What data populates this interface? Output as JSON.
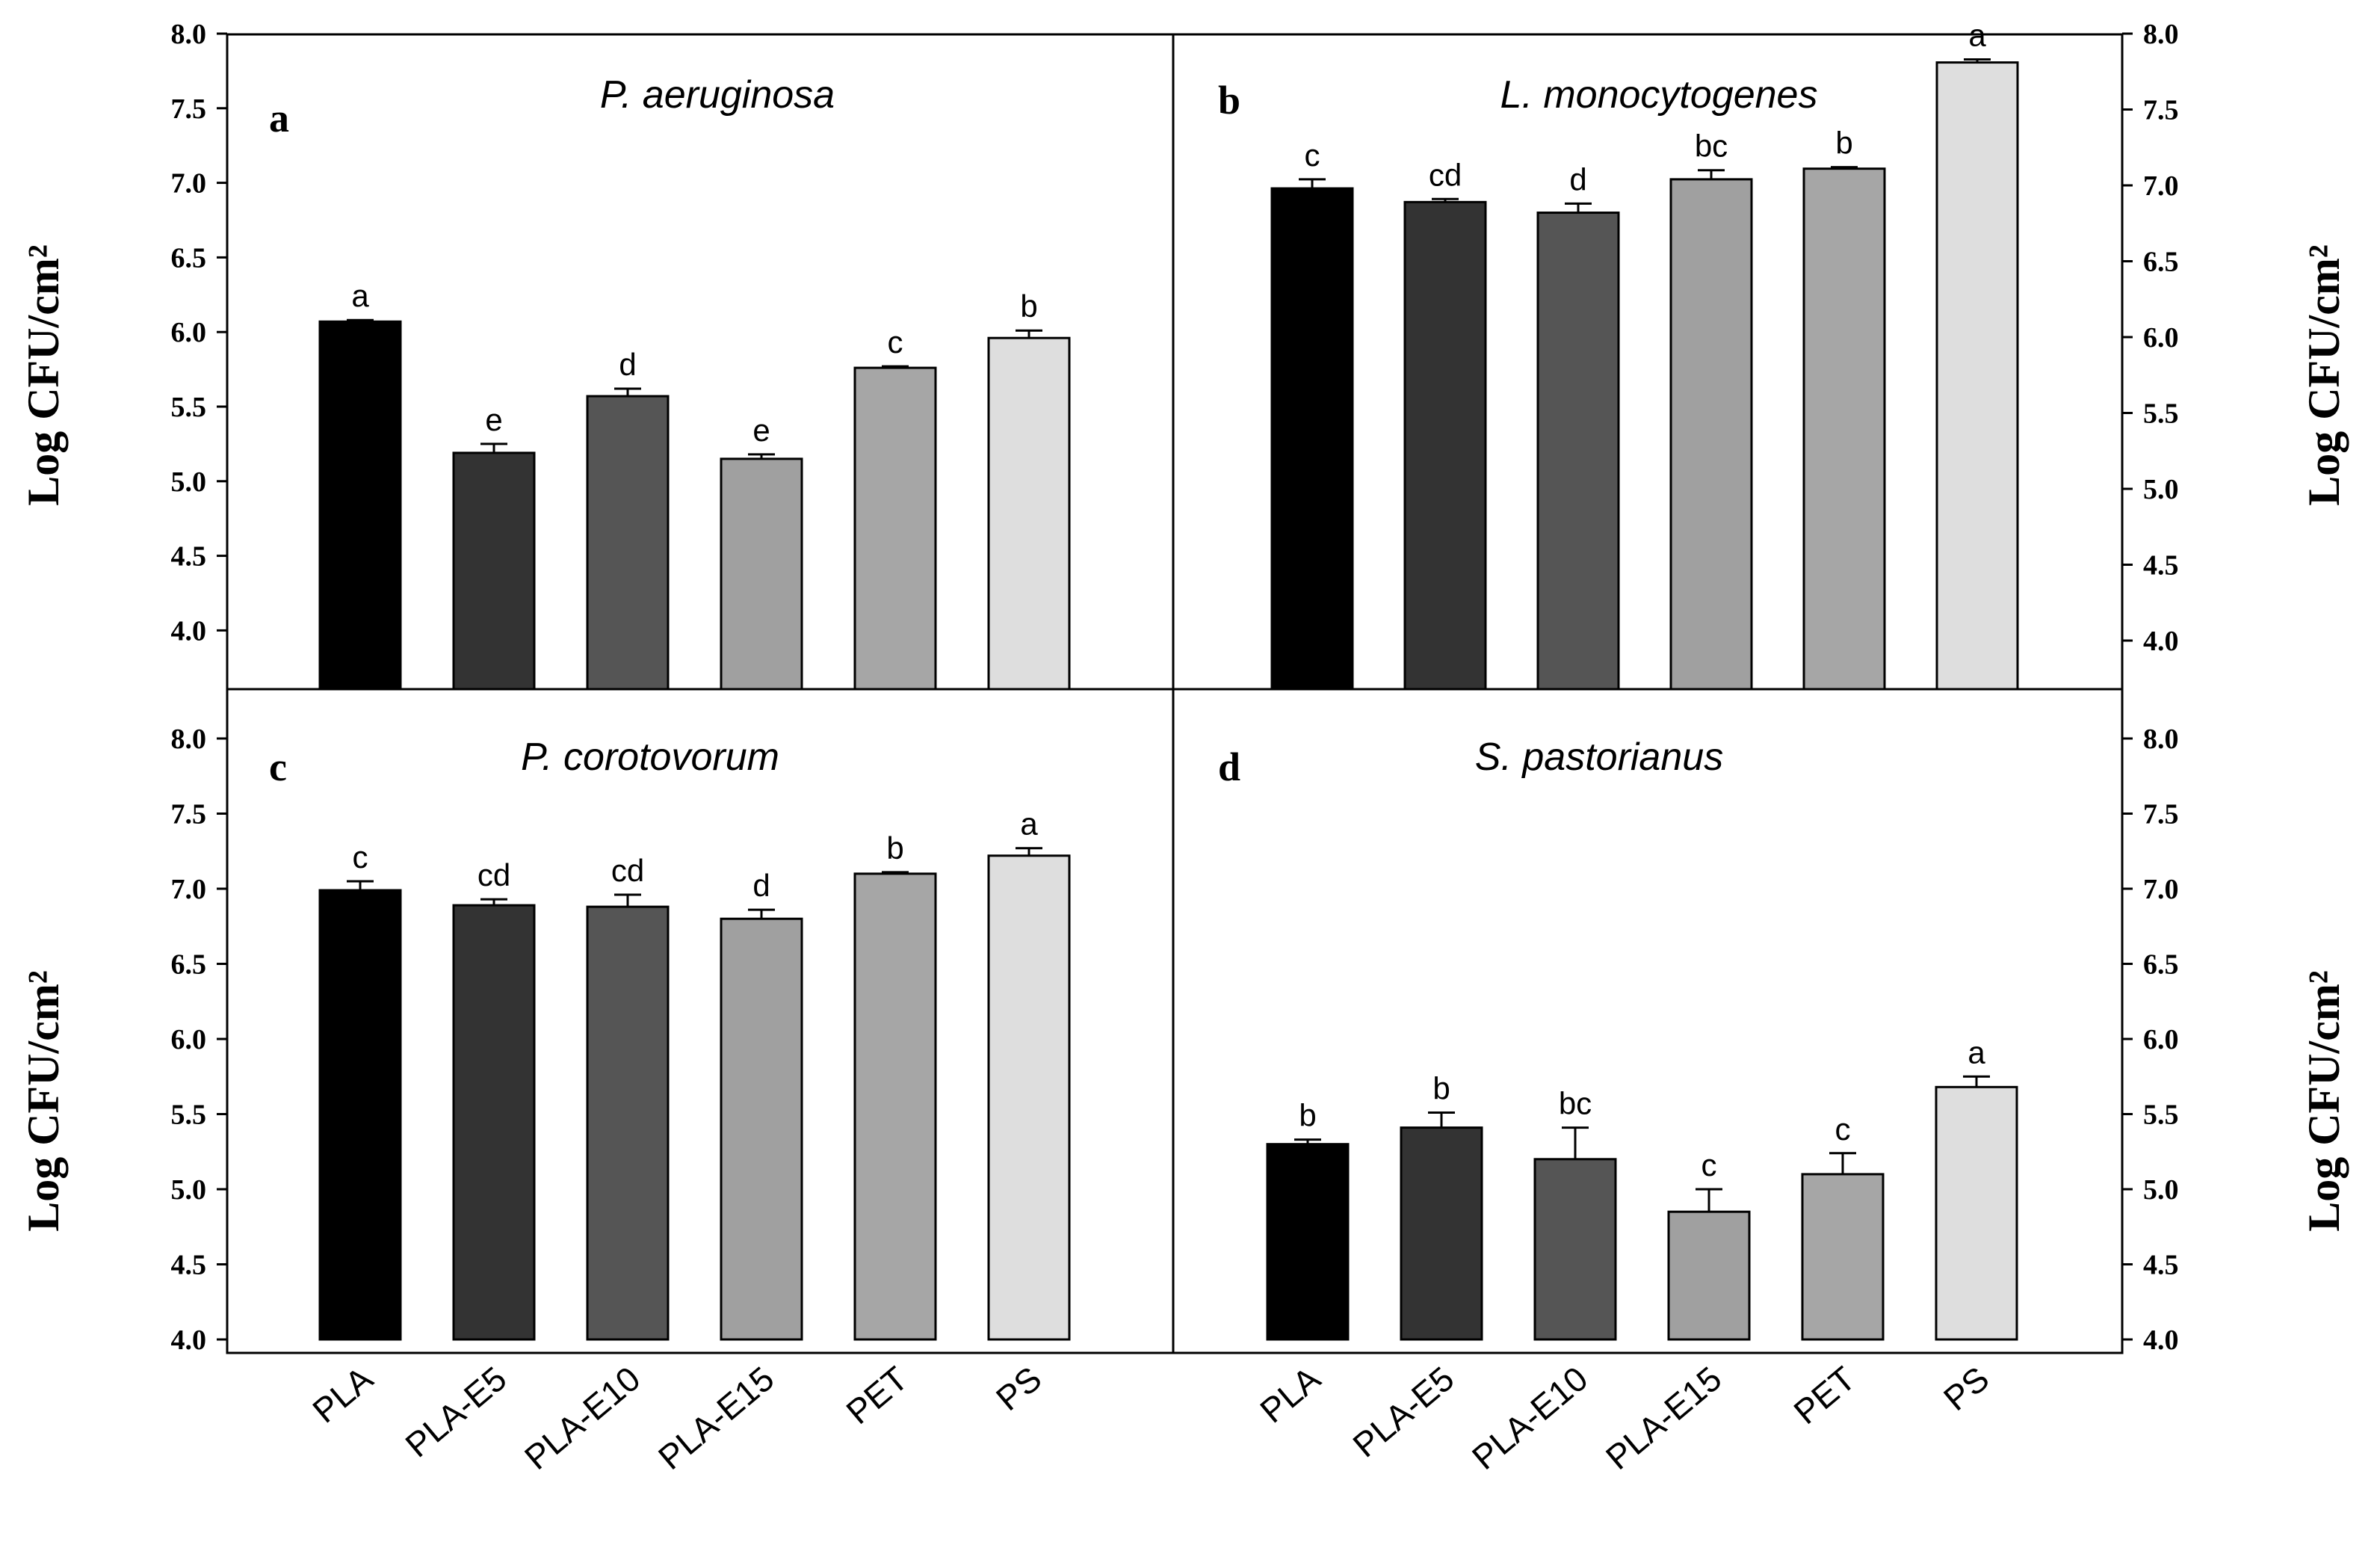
{
  "figure": {
    "y_axis_title": "Log CFU/cm²",
    "y_ticks": [
      "8.0",
      "7.5",
      "7.0",
      "6.5",
      "6.0",
      "5.5",
      "5.0",
      "4.5",
      "4.0"
    ]
  },
  "chart_data": [
    {
      "type": "bar",
      "panel": "a",
      "title": "P. aeruginosa",
      "ylabel": "Log CFU/cm²",
      "ylim": [
        3.8,
        8.0
      ],
      "categories": [
        "PLA",
        "PLA-E5",
        "PLA-E10",
        "PLA-E15",
        "PET",
        "PS"
      ],
      "values": [
        6.07,
        5.19,
        5.57,
        5.15,
        5.76,
        5.96
      ],
      "errors": [
        0.01,
        0.06,
        0.05,
        0.03,
        0.01,
        0.05
      ],
      "letters": [
        "a",
        "e",
        "d",
        "e",
        "c",
        "b"
      ],
      "colors": [
        "#000000",
        "#333333",
        "#555555",
        "#a0a0a0",
        "#a6a6a6",
        "#dedede"
      ]
    },
    {
      "type": "bar",
      "panel": "b",
      "title": "L. monocytogenes",
      "ylabel": "Log CFU/cm²",
      "ylim": [
        3.6,
        8.0
      ],
      "categories": [
        "PLA",
        "PLA-E5",
        "PLA-E10",
        "PLA-E15",
        "PET",
        "PS"
      ],
      "values": [
        6.98,
        6.89,
        6.82,
        7.04,
        7.11,
        7.81
      ],
      "errors": [
        0.06,
        0.02,
        0.06,
        0.06,
        0.01,
        0.02
      ],
      "letters": [
        "c",
        "cd",
        "d",
        "bc",
        "b",
        "a"
      ],
      "colors": [
        "#000000",
        "#333333",
        "#555555",
        "#a0a0a0",
        "#a6a6a6",
        "#dedede"
      ]
    },
    {
      "type": "bar",
      "panel": "c",
      "title": "P. corotovorum",
      "ylabel": "Log CFU/cm²",
      "ylim": [
        4.0,
        8.0
      ],
      "categories": [
        "PLA",
        "PLA-E5",
        "PLA-E10",
        "PLA-E15",
        "PET",
        "PS"
      ],
      "values": [
        6.99,
        6.89,
        6.88,
        6.8,
        7.1,
        7.22
      ],
      "errors": [
        0.06,
        0.04,
        0.08,
        0.06,
        0.01,
        0.05
      ],
      "letters": [
        "c",
        "cd",
        "cd",
        "d",
        "b",
        "a"
      ],
      "colors": [
        "#000000",
        "#333333",
        "#555555",
        "#a0a0a0",
        "#a6a6a6",
        "#dedede"
      ]
    },
    {
      "type": "bar",
      "panel": "d",
      "title": "S. pastorianus",
      "ylabel": "Log CFU/cm²",
      "ylim": [
        4.0,
        8.0
      ],
      "categories": [
        "PLA",
        "PLA-E5",
        "PLA-E10",
        "PLA-E15",
        "PET",
        "PS"
      ],
      "values": [
        5.3,
        5.41,
        5.2,
        4.85,
        5.1,
        5.68
      ],
      "errors": [
        0.03,
        0.1,
        0.21,
        0.15,
        0.14,
        0.07
      ],
      "letters": [
        "b",
        "b",
        "bc",
        "c",
        "c",
        "a"
      ],
      "colors": [
        "#000000",
        "#333333",
        "#555555",
        "#a0a0a0",
        "#a6a6a6",
        "#dedede"
      ]
    }
  ]
}
